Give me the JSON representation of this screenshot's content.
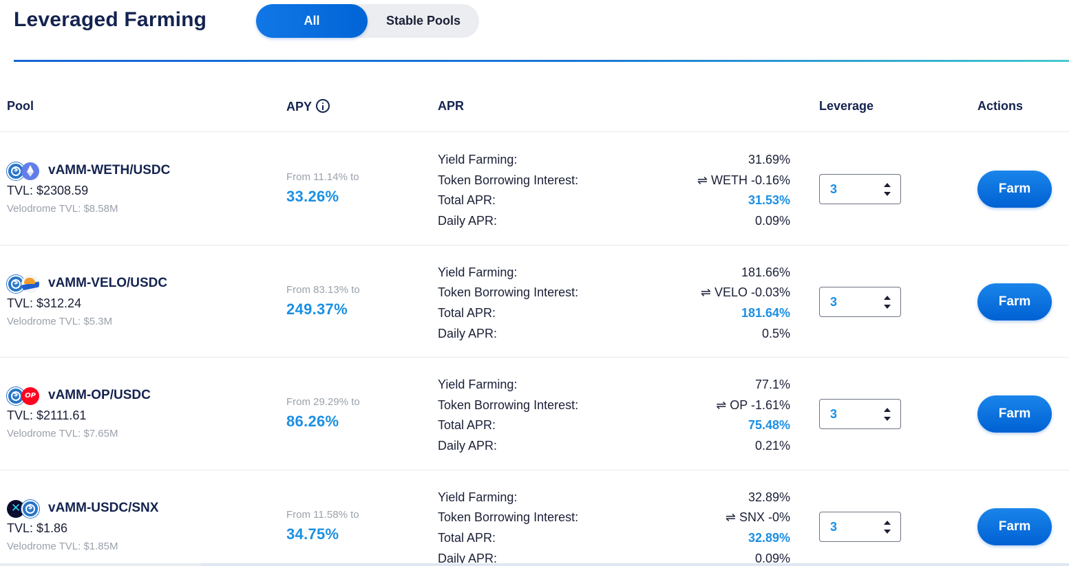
{
  "page": {
    "title": "Leveraged Farming"
  },
  "tabs": [
    {
      "label": "All",
      "active": true
    },
    {
      "label": "Stable Pools",
      "active": false
    }
  ],
  "colors": {
    "accent": "#0064d6",
    "highlight": "#1a8fe3",
    "muted": "#9aa1ab"
  },
  "table": {
    "headers": {
      "pool": "Pool",
      "apy": "APY",
      "apr": "APR",
      "leverage": "Leverage",
      "actions": "Actions"
    },
    "apr_labels": {
      "yield": "Yield Farming:",
      "borrow": "Token Borrowing Interest:",
      "total": "Total APR:",
      "daily": "Daily APR:"
    },
    "rows": [
      {
        "icons": [
          "usdc-icon",
          "eth-icon"
        ],
        "name": "vAMM-WETH/USDC",
        "tvl": "TVL: $2308.59",
        "velodrome_tvl": "Velodrome TVL: $8.58M",
        "apy_from": "From 11.14% to",
        "apy": "33.26%",
        "yield_farming": "31.69%",
        "borrow_interest": "WETH -0.16%",
        "total_apr": "31.53%",
        "daily_apr": "0.09%",
        "leverage": "3",
        "action": "Farm"
      },
      {
        "icons": [
          "usdc-icon",
          "velo-icon"
        ],
        "name": "vAMM-VELO/USDC",
        "tvl": "TVL: $312.24",
        "velodrome_tvl": "Velodrome TVL: $5.3M",
        "apy_from": "From 83.13% to",
        "apy": "249.37%",
        "yield_farming": "181.66%",
        "borrow_interest": "VELO -0.03%",
        "total_apr": "181.64%",
        "daily_apr": "0.5%",
        "leverage": "3",
        "action": "Farm"
      },
      {
        "icons": [
          "usdc-icon",
          "op-icon"
        ],
        "name": "vAMM-OP/USDC",
        "tvl": "TVL: $2111.61",
        "velodrome_tvl": "Velodrome TVL: $7.65M",
        "apy_from": "From 29.29% to",
        "apy": "86.26%",
        "yield_farming": "77.1%",
        "borrow_interest": "OP -1.61%",
        "total_apr": "75.48%",
        "daily_apr": "0.21%",
        "leverage": "3",
        "action": "Farm"
      },
      {
        "icons": [
          "snx-icon",
          "usdc-icon"
        ],
        "name": "vAMM-USDC/SNX",
        "tvl": "TVL: $1.86",
        "velodrome_tvl": "Velodrome TVL: $1.85M",
        "apy_from": "From 11.58% to",
        "apy": "34.75%",
        "yield_farming": "32.89%",
        "borrow_interest": "SNX -0%",
        "total_apr": "32.89%",
        "daily_apr": "0.09%",
        "leverage": "3",
        "action": "Farm"
      }
    ]
  }
}
